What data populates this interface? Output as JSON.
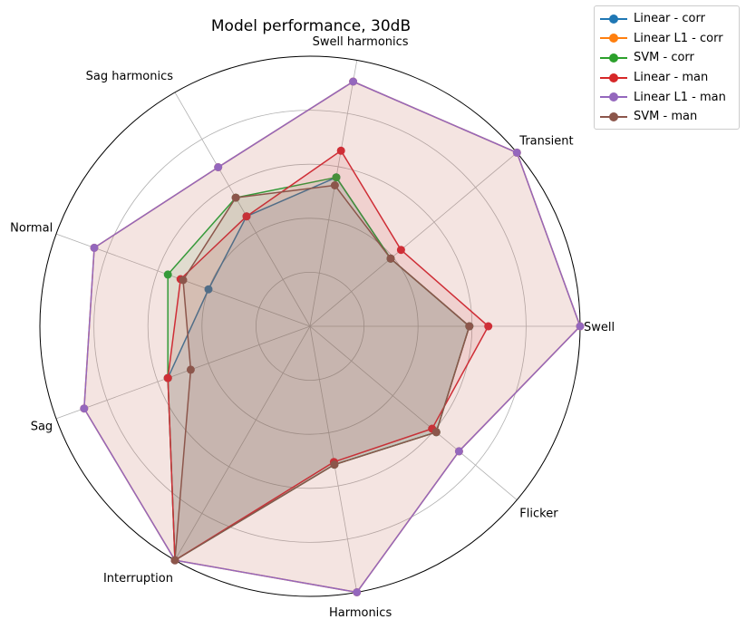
{
  "chart_data": {
    "type": "radar",
    "title": "Model performance, 30dB",
    "categories": [
      "Swell",
      "Transient",
      "Swell harmonics",
      "Sag harmonics",
      "Normal",
      "Sag",
      "Interruption",
      "Harmonics",
      "Flicker"
    ],
    "rlim": [
      0,
      1
    ],
    "grid": true,
    "gridlines": [
      0.2,
      0.4,
      0.6,
      0.8
    ],
    "legend_position": "top-right",
    "fill": true,
    "series": [
      {
        "name": "Linear - corr",
        "color": "#1f77b4",
        "values": [
          0.59,
          0.39,
          0.56,
          0.47,
          0.4,
          0.56,
          1.0,
          0.52,
          0.61
        ]
      },
      {
        "name": "Linear L1 - corr",
        "color": "#ff7f0e",
        "values": [
          1.0,
          1.0,
          0.92,
          0.68,
          0.85,
          0.89,
          1.0,
          1.0,
          0.72
        ]
      },
      {
        "name": "SVM - corr",
        "color": "#2ca02c",
        "values": [
          0.59,
          0.39,
          0.56,
          0.55,
          0.56,
          0.56,
          1.0,
          0.52,
          0.61
        ]
      },
      {
        "name": "Linear - man",
        "color": "#d62728",
        "values": [
          0.66,
          0.44,
          0.66,
          0.47,
          0.51,
          0.56,
          1.0,
          0.51,
          0.59
        ]
      },
      {
        "name": "Linear L1 - man",
        "color": "#9467bd",
        "values": [
          1.0,
          1.0,
          0.92,
          0.68,
          0.85,
          0.89,
          1.0,
          1.0,
          0.72
        ]
      },
      {
        "name": "SVM - man",
        "color": "#8c564b",
        "values": [
          0.59,
          0.39,
          0.53,
          0.55,
          0.5,
          0.47,
          1.0,
          0.52,
          0.61
        ]
      }
    ]
  }
}
